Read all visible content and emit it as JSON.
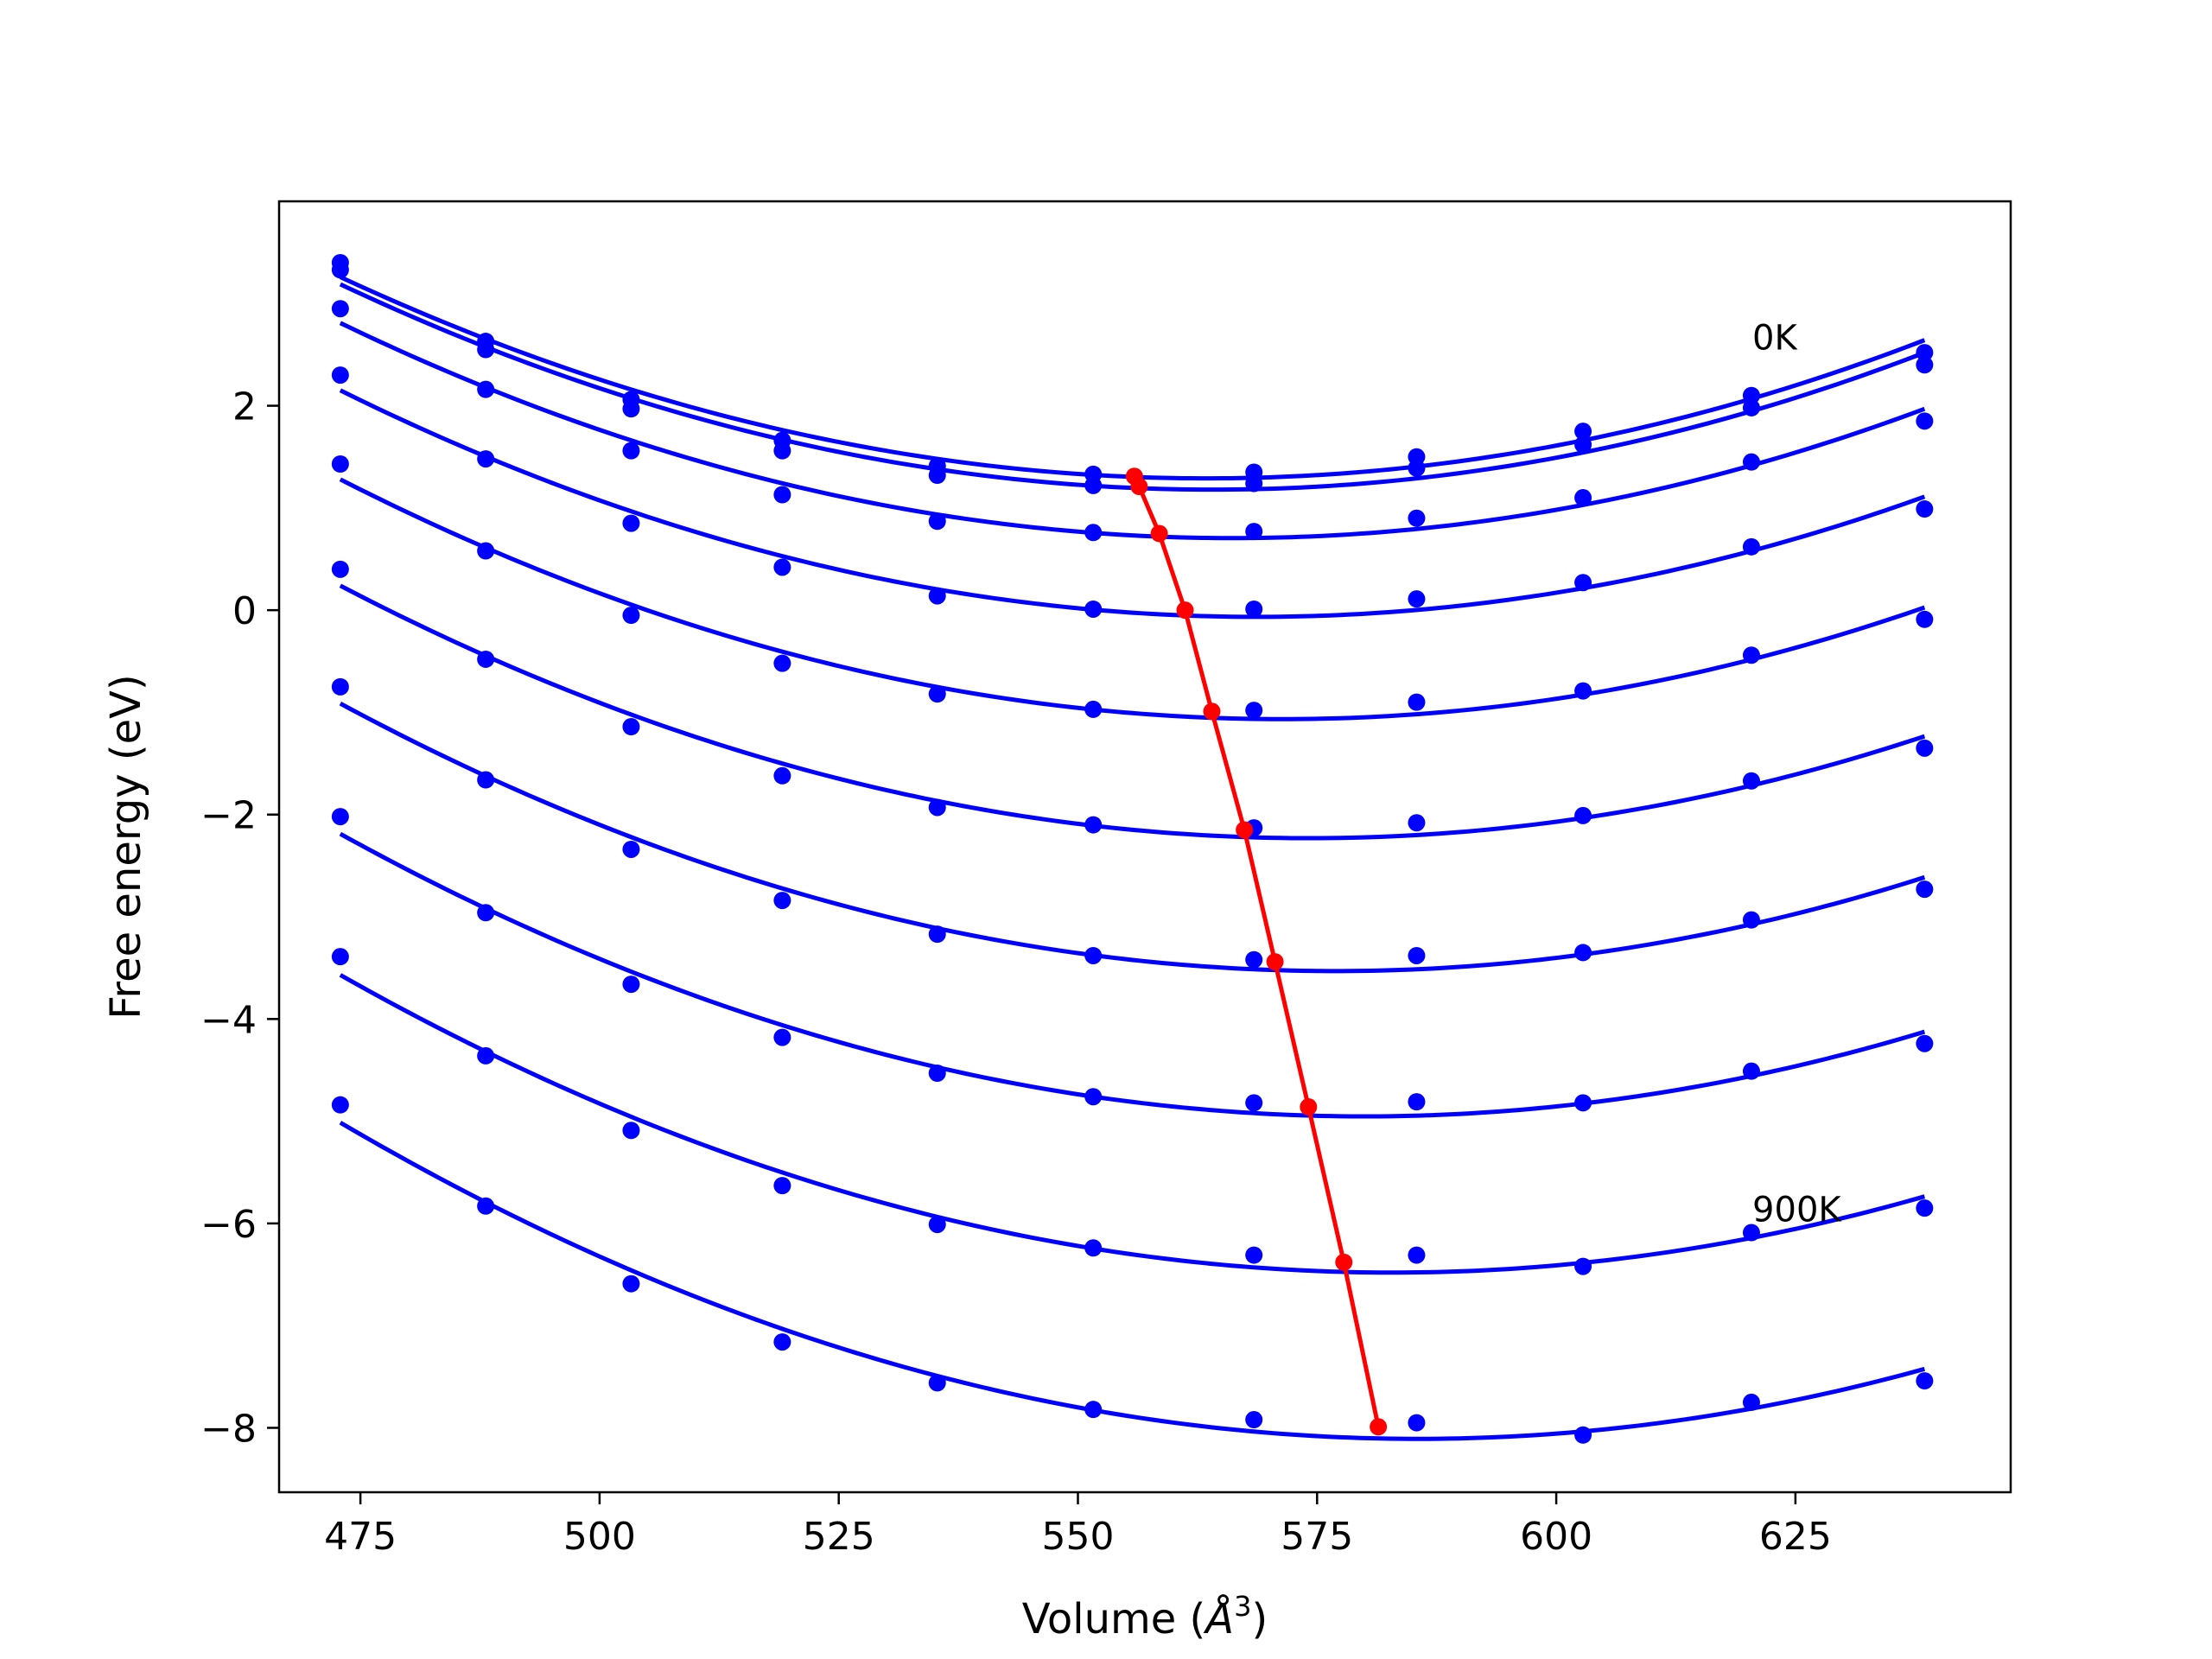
{
  "chart_data": {
    "type": "line",
    "title": "",
    "xlabel_main": "Volume (",
    "xlabel_unit": "Å",
    "xlabel_sup": "3",
    "xlabel_close": ")",
    "ylabel": "Free energy (eV)",
    "xlim": [
      466.5,
      647.5
    ],
    "ylim": [
      -8.63,
      4.0
    ],
    "xticks": [
      475,
      500,
      525,
      550,
      575,
      600,
      625
    ],
    "xtick_labels": [
      "475",
      "500",
      "525",
      "550",
      "575",
      "600",
      "625"
    ],
    "yticks": [
      2,
      0,
      -2,
      -4,
      -6,
      -8
    ],
    "ytick_labels": [
      "2",
      "0",
      "−2",
      "−4",
      "−6",
      "−8"
    ],
    "grid": false,
    "colors": {
      "curves": "#0000ff",
      "minimum_path": "#ff0000",
      "axes": "#000000"
    },
    "annotations": [
      {
        "text": "0K",
        "x": 620.5,
        "y": 2.55
      },
      {
        "text": "900K",
        "x": 620.5,
        "y": -5.98
      }
    ],
    "volumes": [
      472.9,
      488.1,
      503.3,
      519.1,
      535.3,
      551.6,
      568.4,
      585.4,
      602.8,
      620.4,
      638.5
    ],
    "series": [
      {
        "values": [
          3.4,
          2.63,
          2.06,
          1.66,
          1.41,
          1.33,
          1.35,
          1.5,
          1.75,
          2.1,
          2.52
        ]
      },
      {
        "values": [
          3.33,
          2.55,
          1.97,
          1.56,
          1.32,
          1.22,
          1.24,
          1.39,
          1.62,
          1.98,
          2.4
        ]
      },
      {
        "values": [
          2.95,
          2.16,
          1.56,
          1.13,
          0.87,
          0.76,
          0.77,
          0.9,
          1.1,
          1.45,
          1.85
        ]
      },
      {
        "values": [
          2.3,
          1.48,
          0.85,
          0.42,
          0.14,
          0.01,
          0.01,
          0.11,
          0.27,
          0.62,
          0.99
        ]
      },
      {
        "values": [
          1.43,
          0.58,
          -0.05,
          -0.52,
          -0.82,
          -0.97,
          -0.98,
          -0.9,
          -0.79,
          -0.44,
          -0.09
        ]
      },
      {
        "values": [
          0.4,
          -0.48,
          -1.14,
          -1.62,
          -1.93,
          -2.1,
          -2.13,
          -2.08,
          -2.01,
          -1.67,
          -1.35
        ]
      },
      {
        "values": [
          -0.75,
          -1.66,
          -2.34,
          -2.84,
          -3.17,
          -3.38,
          -3.42,
          -3.38,
          -3.35,
          -3.03,
          -2.73
        ]
      },
      {
        "values": [
          -2.02,
          -2.96,
          -3.66,
          -4.18,
          -4.53,
          -4.76,
          -4.82,
          -4.81,
          -4.82,
          -4.51,
          -4.24
        ]
      },
      {
        "values": [
          -3.39,
          -4.36,
          -5.09,
          -5.63,
          -6.01,
          -6.24,
          -6.31,
          -6.31,
          -6.42,
          -6.09,
          -5.85
        ]
      },
      {
        "values": [
          -4.84,
          -5.83,
          -6.59,
          -7.16,
          -7.56,
          -7.82,
          -7.92,
          -7.95,
          -8.07,
          -7.75,
          -7.54
        ]
      }
    ],
    "minimum_path": {
      "x": [
        555.9,
        556.4,
        558.5,
        561.2,
        564.0,
        567.4,
        570.6,
        574.1,
        577.8,
        581.4
      ],
      "y": [
        1.31,
        1.21,
        0.75,
        0.0,
        -0.99,
        -2.15,
        -3.44,
        -4.86,
        -6.38,
        -7.99
      ]
    }
  }
}
